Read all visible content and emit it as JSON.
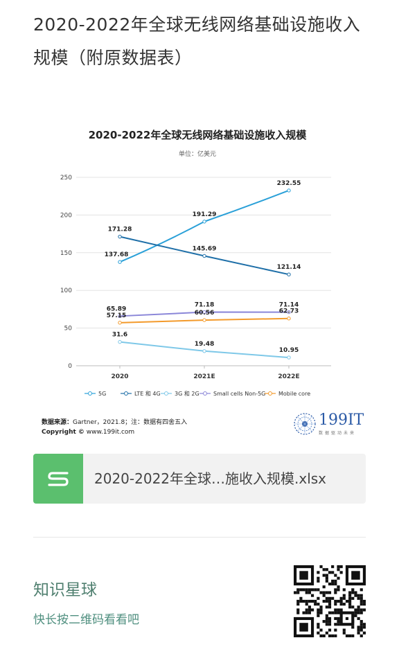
{
  "page": {
    "title": "2020-2022年全球无线网络基础设施收入规模（附原数据表）"
  },
  "chart_data": {
    "type": "line",
    "title": "2020-2022年全球无线网络基础设施收入规模",
    "subtitle": "单位：亿美元",
    "categories": [
      "2020",
      "2021E",
      "2022E"
    ],
    "ylim": [
      0,
      250
    ],
    "yticks": [
      0,
      50,
      100,
      150,
      200,
      250
    ],
    "grid": true,
    "legend_position": "bottom",
    "series": [
      {
        "name": "5G",
        "values": [
          137.68,
          191.29,
          232.55
        ],
        "color": "#2aa0d8"
      },
      {
        "name": "LTE 和 4G",
        "values": [
          171.28,
          145.69,
          121.14
        ],
        "color": "#1e6fa8"
      },
      {
        "name": "3G 和 2G",
        "values": [
          31.6,
          19.48,
          10.95
        ],
        "color": "#7ec8e8"
      },
      {
        "name": "Small cells Non-5G",
        "values": [
          65.89,
          71.18,
          71.14
        ],
        "color": "#8a86d8"
      },
      {
        "name": "Mobile core",
        "values": [
          57.15,
          60.56,
          62.73
        ],
        "color": "#f39a2b"
      }
    ],
    "data_labels": [
      [
        "137.68",
        "191.29",
        "232.55"
      ],
      [
        "171.28",
        "145.69",
        "121.14"
      ],
      [
        "31.6",
        "19.48",
        "10.95"
      ],
      [
        "65.89",
        "71.18",
        "71.14"
      ],
      [
        "57.15",
        "60.56",
        "62.73"
      ]
    ]
  },
  "source": {
    "label": "数据来源：",
    "text": "Gartner，2021.8；注：数据有四舍五入",
    "copyright_label": "Copyright ©",
    "copyright_text": "www.199it.com"
  },
  "logo": {
    "text": "199IT",
    "tagline": "数据驱动未来"
  },
  "file": {
    "name": "2020-2022年全球…施收入规模.xlsx",
    "icon": "spreadsheet-s-icon",
    "icon_color": "#5bbf6e"
  },
  "planet": {
    "title": "知识星球",
    "subtitle": "快长按二维码看看吧"
  },
  "qr": {
    "icon": "qr-code-icon"
  }
}
